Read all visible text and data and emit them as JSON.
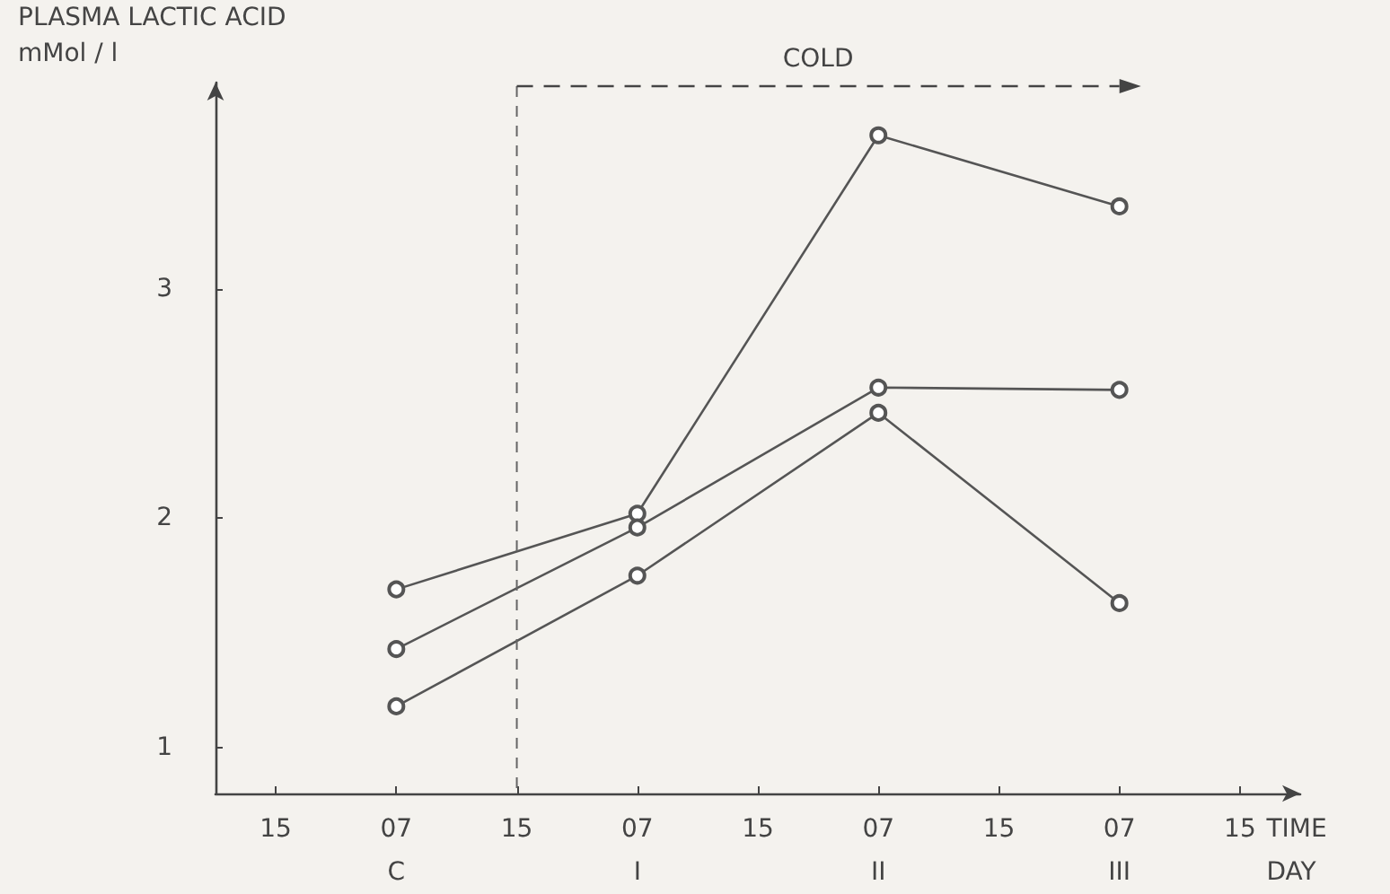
{
  "chart_data": {
    "type": "line",
    "ylabel": "PLASMA LACTIC ACID\nmMol / l",
    "xlabel": "TIME\nDAY",
    "categories": [
      "15",
      "07\nC",
      "15",
      "07\nI",
      "15",
      "07\nII",
      "15",
      "07\nIII",
      "15"
    ],
    "ylim": [
      0.8,
      3.9
    ],
    "yticks": [
      1,
      2,
      3
    ],
    "series": [
      {
        "color": "#555555",
        "values": [
          null,
          1.69,
          null,
          2.02,
          null,
          3.67,
          null,
          3.36,
          null
        ]
      },
      {
        "color": "#555555",
        "values": [
          null,
          1.43,
          null,
          1.96,
          null,
          2.57,
          null,
          2.56,
          null
        ]
      },
      {
        "color": "#555555",
        "values": [
          null,
          1.18,
          null,
          1.75,
          null,
          2.46,
          null,
          1.63,
          null
        ]
      }
    ],
    "marker": "circle",
    "line_style": "solid",
    "annotations": [
      "COLD"
    ]
  }
}
